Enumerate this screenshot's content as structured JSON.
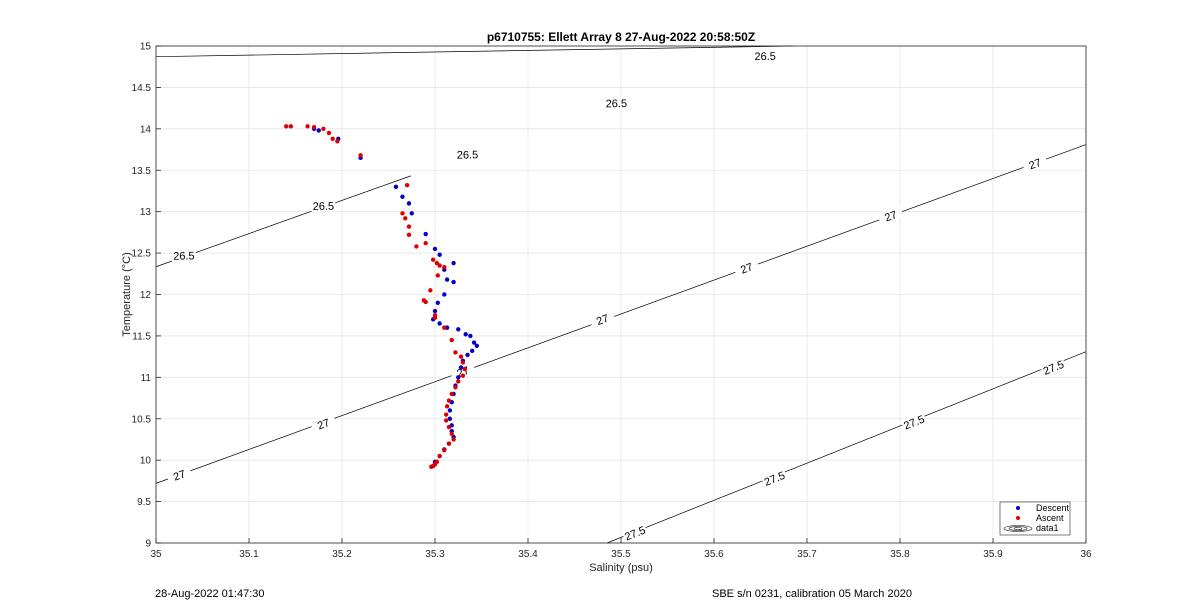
{
  "chart_data": {
    "type": "scatter",
    "title": "p6710755: Ellett Array 8 27-Aug-2022 20:58:50Z",
    "xlabel": "Salinity (psu)",
    "ylabel": "Temperature (°C)",
    "xlim": [
      35,
      36
    ],
    "ylim": [
      9,
      15
    ],
    "x_ticks": [
      "35",
      "35.1",
      "35.2",
      "35.3",
      "35.4",
      "35.5",
      "35.6",
      "35.7",
      "35.8",
      "35.9",
      "36"
    ],
    "y_ticks": [
      "9",
      "9.5",
      "10",
      "10.5",
      "11",
      "11.5",
      "12",
      "12.5",
      "13",
      "13.5",
      "14",
      "14.5",
      "15"
    ],
    "grid": true,
    "legend": {
      "position": "bottom-right",
      "entries": [
        "Descent",
        "Ascent",
        "data1"
      ]
    },
    "colors": {
      "descent": "#0000cc",
      "ascent": "#e00000",
      "contour": "#000000",
      "grid": "#e6e6e6"
    },
    "series": [
      {
        "name": "Descent",
        "points": [
          [
            35.196,
            13.88
          ],
          [
            35.22,
            13.65
          ],
          [
            35.175,
            13.98
          ],
          [
            35.17,
            14.0
          ],
          [
            35.258,
            13.3
          ],
          [
            35.265,
            13.18
          ],
          [
            35.272,
            13.1
          ],
          [
            35.275,
            12.98
          ],
          [
            35.29,
            12.73
          ],
          [
            35.3,
            12.55
          ],
          [
            35.305,
            12.48
          ],
          [
            35.31,
            12.3
          ],
          [
            35.313,
            12.18
          ],
          [
            35.32,
            12.38
          ],
          [
            35.32,
            12.15
          ],
          [
            35.31,
            12.0
          ],
          [
            35.303,
            11.9
          ],
          [
            35.3,
            11.8
          ],
          [
            35.298,
            11.7
          ],
          [
            35.305,
            11.65
          ],
          [
            35.313,
            11.6
          ],
          [
            35.325,
            11.58
          ],
          [
            35.333,
            11.52
          ],
          [
            35.338,
            11.5
          ],
          [
            35.342,
            11.42
          ],
          [
            35.345,
            11.38
          ],
          [
            35.34,
            11.32
          ],
          [
            35.335,
            11.27
          ],
          [
            35.33,
            11.2
          ],
          [
            35.328,
            11.12
          ],
          [
            35.325,
            11.0
          ],
          [
            35.322,
            10.9
          ],
          [
            35.32,
            10.8
          ],
          [
            35.318,
            10.7
          ],
          [
            35.316,
            10.6
          ],
          [
            35.316,
            10.5
          ],
          [
            35.318,
            10.42
          ],
          [
            35.318,
            10.35
          ],
          [
            35.32,
            10.28
          ],
          [
            35.315,
            10.2
          ],
          [
            35.31,
            10.13
          ],
          [
            35.305,
            10.05
          ],
          [
            35.3,
            9.98
          ],
          [
            35.298,
            9.93
          ]
        ]
      },
      {
        "name": "Ascent",
        "points": [
          [
            35.14,
            14.03
          ],
          [
            35.145,
            14.03
          ],
          [
            35.163,
            14.03
          ],
          [
            35.17,
            14.02
          ],
          [
            35.18,
            14.0
          ],
          [
            35.186,
            13.95
          ],
          [
            35.19,
            13.88
          ],
          [
            35.195,
            13.85
          ],
          [
            35.22,
            13.68
          ],
          [
            35.27,
            13.32
          ],
          [
            35.265,
            12.98
          ],
          [
            35.268,
            12.92
          ],
          [
            35.272,
            12.82
          ],
          [
            35.272,
            12.72
          ],
          [
            35.28,
            12.58
          ],
          [
            35.29,
            12.62
          ],
          [
            35.298,
            12.42
          ],
          [
            35.302,
            12.38
          ],
          [
            35.305,
            12.35
          ],
          [
            35.31,
            12.33
          ],
          [
            35.303,
            12.23
          ],
          [
            35.295,
            12.05
          ],
          [
            35.288,
            11.93
          ],
          [
            35.29,
            11.91
          ],
          [
            35.3,
            11.75
          ],
          [
            35.3,
            11.72
          ],
          [
            35.31,
            11.6
          ],
          [
            35.318,
            11.45
          ],
          [
            35.322,
            11.3
          ],
          [
            35.328,
            11.25
          ],
          [
            35.33,
            11.18
          ],
          [
            35.332,
            11.1
          ],
          [
            35.33,
            11.02
          ],
          [
            35.325,
            10.95
          ],
          [
            35.322,
            10.88
          ],
          [
            35.318,
            10.8
          ],
          [
            35.315,
            10.72
          ],
          [
            35.313,
            10.65
          ],
          [
            35.312,
            10.55
          ],
          [
            35.312,
            10.48
          ],
          [
            35.315,
            10.4
          ],
          [
            35.318,
            10.32
          ],
          [
            35.32,
            10.25
          ],
          [
            35.315,
            10.2
          ],
          [
            35.31,
            10.12
          ],
          [
            35.305,
            10.05
          ],
          [
            35.302,
            9.98
          ],
          [
            35.298,
            9.93
          ],
          [
            35.296,
            9.92
          ],
          [
            35.3,
            9.95
          ]
        ]
      }
    ],
    "contours": [
      {
        "level": "26.5",
        "lines": [
          [
            [
              35.0,
              12.335
            ],
            [
              35.274,
              13.432
            ]
          ],
          [
            [
              35.0,
              14.871
            ],
            [
              35.685,
              15.0
            ]
          ]
        ],
        "labels": [
          [
            35.03,
            12.47
          ],
          [
            35.18,
            13.07
          ],
          [
            35.335,
            13.69
          ],
          [
            35.495,
            14.31
          ],
          [
            35.655,
            14.88
          ]
        ]
      },
      {
        "level": "27",
        "lines": [
          [
            [
              35.0,
              9.72
            ],
            [
              36.0,
              13.81
            ]
          ]
        ],
        "labels": [
          [
            35.025,
            9.82
          ],
          [
            35.18,
            10.44
          ],
          [
            35.33,
            11.07
          ],
          [
            35.48,
            11.7
          ],
          [
            35.635,
            12.32
          ],
          [
            35.79,
            12.95
          ],
          [
            35.945,
            13.58
          ]
        ]
      },
      {
        "level": "27.5",
        "lines": [
          [
            [
              35.485,
              9.0
            ],
            [
              36.0,
              11.31
            ]
          ]
        ],
        "labels": [
          [
            35.515,
            9.12
          ],
          [
            35.665,
            9.78
          ],
          [
            35.815,
            10.46
          ],
          [
            35.965,
            11.12
          ]
        ]
      }
    ]
  },
  "footer": {
    "timestamp": "28-Aug-2022 01:47:30",
    "calibration": "SBE s/n 0231, calibration 05 March 2020"
  }
}
